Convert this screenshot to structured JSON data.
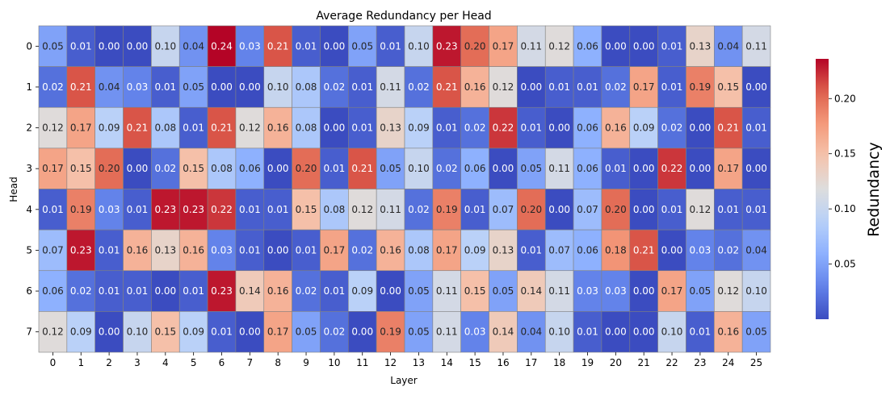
{
  "chart_data": {
    "type": "heatmap",
    "title": "Average Redundancy per Head",
    "xlabel": "Layer",
    "ylabel": "Head",
    "x": [
      "0",
      "1",
      "2",
      "3",
      "4",
      "5",
      "6",
      "7",
      "8",
      "9",
      "10",
      "11",
      "12",
      "13",
      "14",
      "15",
      "16",
      "17",
      "18",
      "19",
      "20",
      "21",
      "22",
      "23",
      "24",
      "25"
    ],
    "y": [
      "0",
      "1",
      "2",
      "3",
      "4",
      "5",
      "6",
      "7"
    ],
    "values": [
      [
        0.05,
        0.01,
        0.0,
        0.0,
        0.1,
        0.04,
        0.24,
        0.03,
        0.21,
        0.01,
        0.0,
        0.05,
        0.01,
        0.1,
        0.23,
        0.2,
        0.17,
        0.11,
        0.12,
        0.06,
        0.0,
        0.0,
        0.01,
        0.13,
        0.04,
        0.11
      ],
      [
        0.02,
        0.21,
        0.04,
        0.03,
        0.01,
        0.05,
        0.0,
        0.0,
        0.1,
        0.08,
        0.02,
        0.01,
        0.11,
        0.02,
        0.21,
        0.16,
        0.12,
        0.0,
        0.01,
        0.01,
        0.02,
        0.17,
        0.01,
        0.19,
        0.15,
        0.0
      ],
      [
        0.12,
        0.17,
        0.09,
        0.21,
        0.08,
        0.01,
        0.21,
        0.12,
        0.16,
        0.08,
        0.0,
        0.01,
        0.13,
        0.09,
        0.01,
        0.02,
        0.22,
        0.01,
        0.0,
        0.06,
        0.16,
        0.09,
        0.02,
        0.0,
        0.21,
        0.01
      ],
      [
        0.17,
        0.15,
        0.2,
        0.0,
        0.02,
        0.15,
        0.08,
        0.06,
        0.0,
        0.2,
        0.01,
        0.21,
        0.05,
        0.1,
        0.02,
        0.06,
        0.0,
        0.05,
        0.11,
        0.06,
        0.01,
        0.0,
        0.22,
        0.0,
        0.17,
        0.0
      ],
      [
        0.01,
        0.19,
        0.03,
        0.01,
        0.23,
        0.23,
        0.22,
        0.01,
        0.01,
        0.15,
        0.08,
        0.12,
        0.11,
        0.02,
        0.19,
        0.01,
        0.07,
        0.2,
        0.0,
        0.07,
        0.2,
        0.0,
        0.01,
        0.12,
        0.01,
        0.01
      ],
      [
        0.07,
        0.23,
        0.01,
        0.16,
        0.13,
        0.16,
        0.03,
        0.01,
        0.0,
        0.01,
        0.17,
        0.02,
        0.16,
        0.08,
        0.17,
        0.09,
        0.13,
        0.01,
        0.07,
        0.06,
        0.18,
        0.21,
        0.0,
        0.03,
        0.02,
        0.04
      ],
      [
        0.06,
        0.02,
        0.01,
        0.01,
        0.0,
        0.01,
        0.23,
        0.14,
        0.16,
        0.02,
        0.01,
        0.09,
        0.0,
        0.05,
        0.11,
        0.15,
        0.05,
        0.14,
        0.11,
        0.03,
        0.03,
        0.0,
        0.17,
        0.05,
        0.12,
        0.1
      ],
      [
        0.12,
        0.09,
        0.0,
        0.1,
        0.15,
        0.09,
        0.01,
        0.0,
        0.17,
        0.05,
        0.02,
        0.0,
        0.19,
        0.05,
        0.11,
        0.03,
        0.14,
        0.04,
        0.1,
        0.01,
        0.0,
        0.0,
        0.1,
        0.01,
        0.16,
        0.05
      ]
    ],
    "colormap": "coolwarm",
    "vmin": 0.0,
    "vmax": 0.236,
    "colorbar": {
      "label": "Redundancy",
      "ticks": [
        0.05,
        0.1,
        0.15,
        0.2
      ],
      "tick_labels": [
        "0.05",
        "0.10",
        "0.15",
        "0.20"
      ]
    },
    "cell_border_color": "#808080"
  }
}
